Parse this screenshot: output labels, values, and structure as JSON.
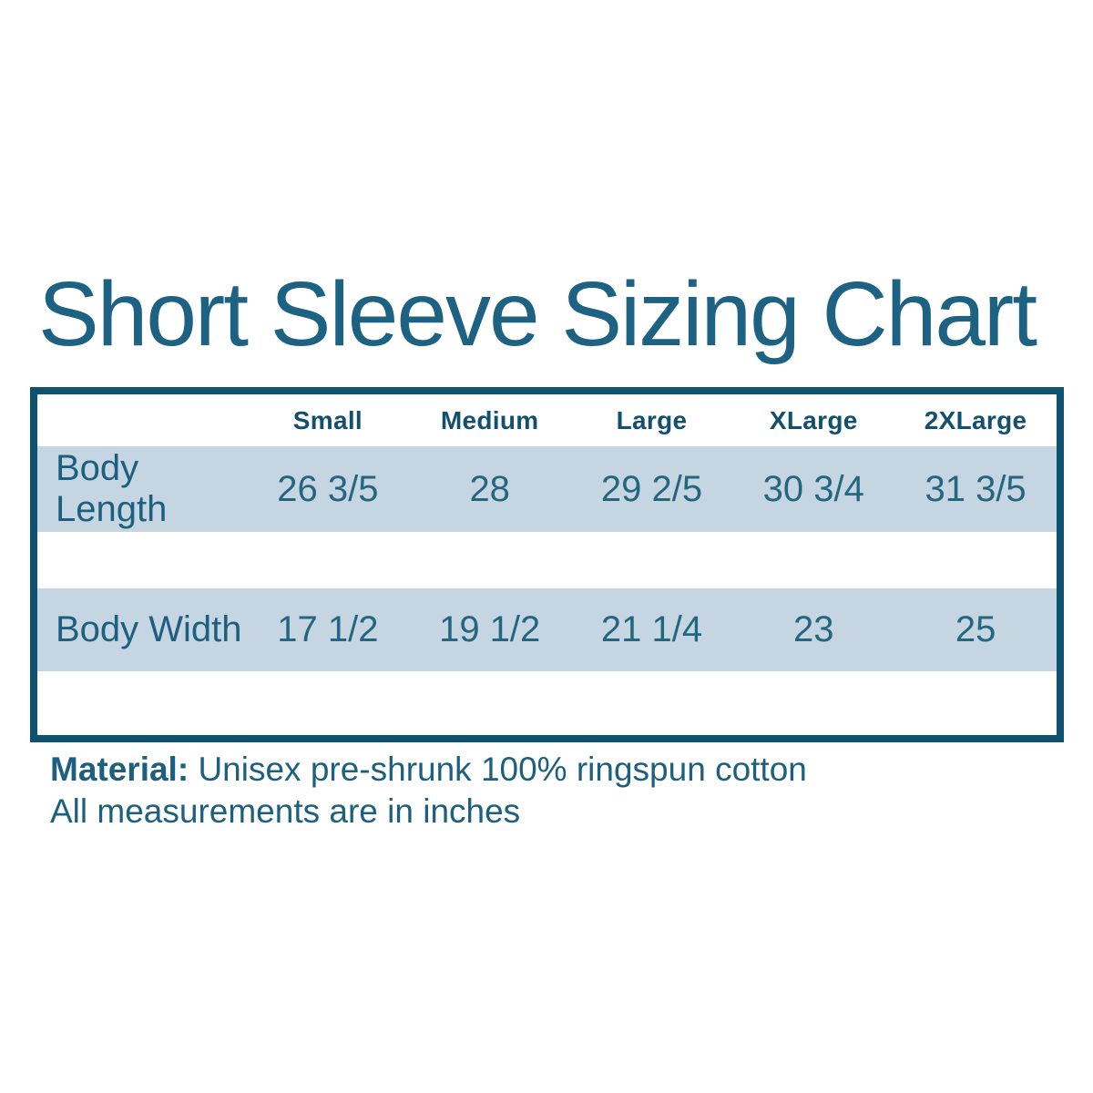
{
  "chart_data": {
    "type": "table",
    "title": "Short Sleeve Sizing Chart",
    "columns": [
      "Small",
      "Medium",
      "Large",
      "XLarge",
      "2XLarge"
    ],
    "rows": [
      {
        "label": "Body Length",
        "values": [
          "26 3/5",
          "28",
          "29 2/5",
          "30 3/4",
          "31 3/5"
        ]
      },
      {
        "label": "Body Width",
        "values": [
          "17 1/2",
          "19 1/2",
          "21 1/4",
          "23",
          "25"
        ]
      }
    ],
    "units": "inches"
  },
  "notes": {
    "material_label": "Material:",
    "material_value": "Unisex pre-shrunk 100% ringspun cotton",
    "measurements_note": "All measurements are in inches"
  },
  "colors": {
    "title_text": "#1d6283",
    "table_border": "#0e5271",
    "header_text": "#134f6f",
    "cell_text": "#24657f",
    "row_background": "#c5d6e2",
    "page_background": "#ffffff"
  }
}
